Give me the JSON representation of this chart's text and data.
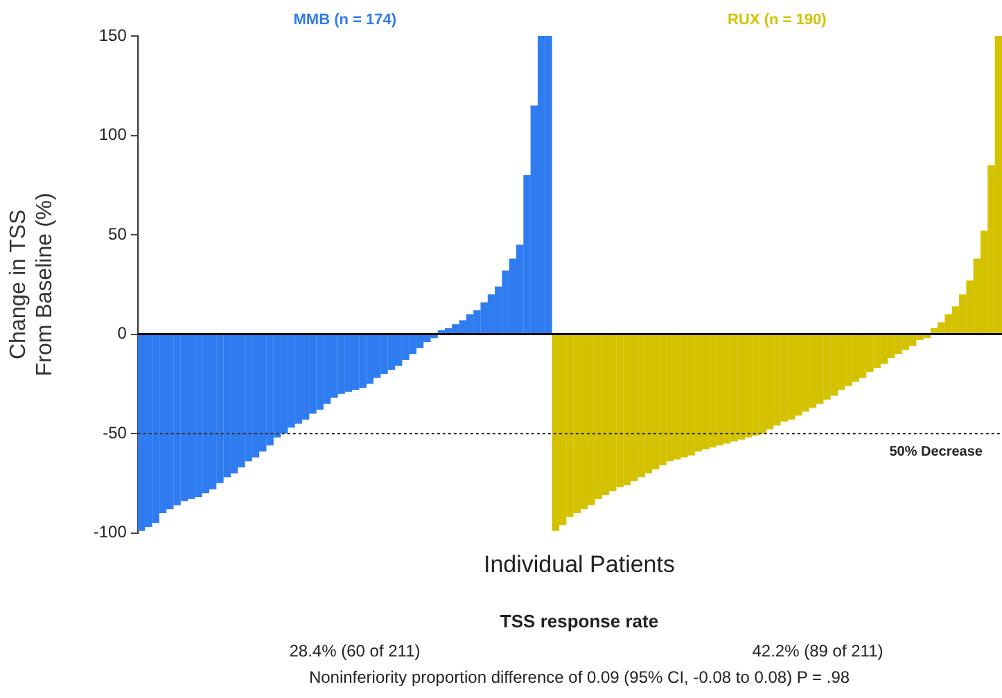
{
  "chart_data": {
    "type": "bar",
    "ylabel": "Change in TSS\nFrom Baseline (%)",
    "xlabel": "Individual Patients",
    "categories": [
      null,
      null,
      null,
      null,
      null,
      null,
      null,
      null,
      null,
      null,
      null,
      null,
      null,
      null,
      null,
      null,
      null,
      null,
      null,
      null,
      null,
      null,
      null,
      null,
      null,
      null,
      null,
      null,
      null,
      null,
      null,
      null,
      null,
      null,
      null,
      null,
      null,
      null,
      null,
      null,
      null,
      null,
      null,
      null,
      null,
      null,
      null,
      null,
      null,
      null,
      null,
      null,
      null,
      null,
      null,
      null,
      null,
      null,
      null,
      null,
      null,
      null,
      null,
      null,
      null,
      null,
      null,
      null,
      null,
      null,
      null,
      null,
      null,
      null,
      null,
      null,
      null,
      null,
      null,
      null,
      null,
      null,
      null,
      null,
      null,
      null,
      null,
      null,
      null,
      null,
      null,
      null,
      null,
      null,
      null,
      null,
      null,
      null,
      null,
      null,
      null,
      null,
      null,
      null,
      null,
      null,
      null,
      null,
      null,
      null,
      null,
      null,
      null,
      null,
      null,
      null,
      null,
      null,
      null,
      null,
      null
    ],
    "series": [
      {
        "name": "MMB (n = 174)",
        "color": "#2f7cf0",
        "values": [
          -99,
          -97,
          -95,
          -90,
          -88,
          -86,
          -84,
          -83,
          -82,
          -80,
          -78,
          -75,
          -72,
          -70,
          -67,
          -64,
          -62,
          -59,
          -56,
          -52,
          -50,
          -47,
          -45,
          -43,
          -40,
          -38,
          -35,
          -32,
          -30,
          -29,
          -28,
          -27,
          -25,
          -22,
          -20,
          -18,
          -16,
          -13,
          -10,
          -7,
          -4,
          -2,
          2,
          3,
          5,
          7,
          10,
          12,
          16,
          20,
          24,
          32,
          38,
          45,
          80,
          115,
          150,
          150,
          null,
          null,
          null,
          null,
          null,
          null,
          null,
          null,
          null,
          null,
          null,
          null,
          null,
          null,
          null,
          null,
          null,
          null,
          null,
          null,
          null,
          null,
          null,
          null,
          null,
          null,
          null,
          null,
          null,
          null,
          null,
          null,
          null,
          null,
          null,
          null,
          null,
          null,
          null,
          null,
          null,
          null,
          null,
          null,
          null,
          null,
          null,
          null,
          null,
          null,
          null,
          null,
          null,
          null,
          null,
          null,
          null,
          null,
          null,
          null,
          null,
          null,
          null
        ]
      },
      {
        "name": "RUX (n = 190)",
        "color": "#d4c200",
        "values": [
          null,
          null,
          null,
          null,
          null,
          null,
          null,
          null,
          null,
          null,
          null,
          null,
          null,
          null,
          null,
          null,
          null,
          null,
          null,
          null,
          null,
          null,
          null,
          null,
          null,
          null,
          null,
          null,
          null,
          null,
          null,
          null,
          null,
          null,
          null,
          null,
          null,
          null,
          null,
          null,
          null,
          null,
          null,
          null,
          null,
          null,
          null,
          null,
          null,
          null,
          null,
          null,
          null,
          null,
          null,
          null,
          null,
          null,
          -99,
          -96,
          -92,
          -90,
          -88,
          -86,
          -83,
          -81,
          -79,
          -77,
          -76,
          -74,
          -72,
          -70,
          -68,
          -66,
          -64,
          -63,
          -62,
          -61,
          -59,
          -58,
          -57,
          -56,
          -55,
          -54,
          -53,
          -52,
          -51,
          -50,
          -48,
          -46,
          -44,
          -43,
          -41,
          -39,
          -37,
          -35,
          -33,
          -31,
          -28,
          -26,
          -24,
          -22,
          -19,
          -17,
          -15,
          -12,
          -10,
          -8,
          -6,
          -3,
          -2,
          3,
          6,
          10,
          14,
          20,
          27,
          38,
          52,
          85,
          150
        ]
      }
    ],
    "ylim": [
      -100,
      150
    ],
    "yticks": [
      -100,
      -50,
      0,
      50,
      100,
      150
    ],
    "grid": false,
    "legend": false,
    "tick_labels": "y",
    "ref_lines": [
      {
        "axis": "y",
        "value": 0,
        "line_style": "solid",
        "color": "#000000"
      },
      {
        "axis": "y",
        "value": -50,
        "line_style": "dotted",
        "color": "#333333",
        "label": "50% Decrease"
      }
    ],
    "annotations": [
      "TSS response rate",
      "28.4% (60 of 211)",
      "42.2% (89 of 211)",
      "Noninferiority proportion difference of 0.09 (95% CI, -0.08 to 0.08) P = .98"
    ]
  }
}
